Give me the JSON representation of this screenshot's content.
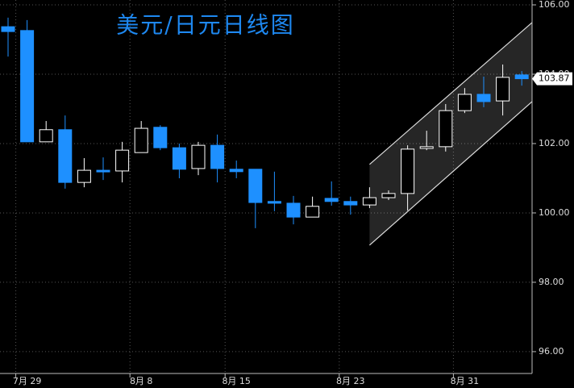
{
  "chart_data": {
    "type": "candlestick",
    "title": "美元/日元日线图",
    "categories": [
      null,
      "7月 29",
      null,
      null,
      null,
      null,
      null,
      "8月 8",
      null,
      null,
      null,
      null,
      "8月 15",
      null,
      null,
      null,
      null,
      null,
      "8月 23",
      null,
      null,
      null,
      null,
      null,
      "8月 31",
      null,
      null,
      null
    ],
    "open": [
      105.37,
      105.26,
      102.05,
      102.4,
      100.88,
      101.23,
      101.21,
      101.74,
      102.47,
      101.88,
      101.28,
      101.95,
      101.26,
      101.26,
      100.33,
      100.28,
      99.88,
      100.42,
      100.33,
      100.23,
      100.44,
      100.56,
      101.86,
      101.91,
      102.95,
      103.42,
      103.23,
      103.98
    ],
    "high": [
      105.63,
      105.56,
      102.65,
      102.81,
      101.58,
      101.6,
      102.05,
      102.65,
      102.53,
      102.0,
      102.05,
      102.26,
      101.51,
      101.26,
      101.19,
      100.49,
      100.47,
      100.91,
      100.47,
      100.74,
      100.65,
      101.95,
      102.37,
      103.14,
      103.6,
      103.93,
      104.28,
      104.09
    ],
    "low": [
      104.51,
      102.05,
      102.05,
      100.7,
      100.74,
      100.95,
      100.88,
      101.74,
      101.81,
      101.0,
      101.09,
      100.88,
      101.0,
      99.56,
      100.05,
      99.67,
      99.88,
      100.21,
      99.95,
      100.14,
      100.37,
      100.07,
      101.81,
      101.77,
      102.88,
      103.05,
      102.81,
      103.67
    ],
    "close": [
      105.23,
      102.05,
      102.4,
      100.88,
      101.23,
      101.19,
      101.81,
      102.44,
      101.88,
      101.26,
      101.95,
      101.28,
      101.19,
      100.3,
      100.28,
      99.88,
      100.19,
      100.33,
      100.23,
      100.44,
      100.56,
      101.84,
      101.91,
      102.95,
      103.42,
      103.21,
      103.91,
      103.87
    ],
    "up_color": "#ffffff",
    "down_color": "#1e90ff",
    "channel": {
      "upper": [
        101.4,
        105.49
      ],
      "lower": [
        99.07,
        103.21
      ]
    },
    "ylim": [
      95.37,
      106.14
    ],
    "yticks": [
      {
        "value": 96,
        "label": "96.00"
      },
      {
        "value": 98,
        "label": "98.00"
      },
      {
        "value": 100,
        "label": "100.00"
      },
      {
        "value": 102,
        "label": "102.00"
      },
      {
        "value": 104,
        "label": "104.00"
      },
      {
        "value": 106,
        "label": "106.00"
      }
    ],
    "grid": true
  }
}
